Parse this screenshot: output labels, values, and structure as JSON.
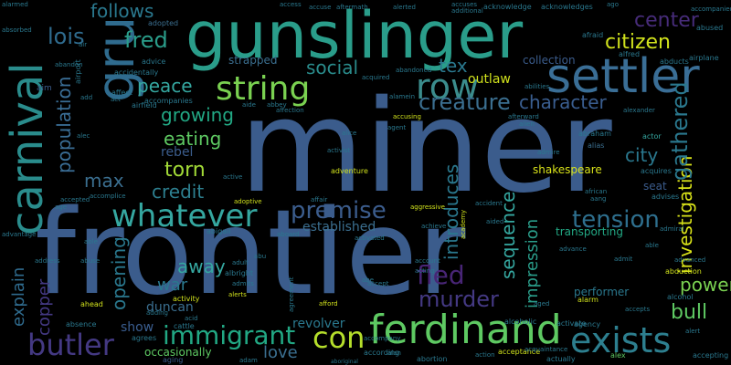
{
  "words": [
    {
      "text": "frontier",
      "color": "#3b5c8c"
    },
    {
      "text": "miner",
      "color": "#3b5c8c"
    },
    {
      "text": "gunslinger",
      "color": "#2a9d8a"
    },
    {
      "text": "settler",
      "color": "#3a6e96"
    },
    {
      "text": "gru",
      "color": "#2f6b8e"
    },
    {
      "text": "carnival",
      "color": "#2a8c8c"
    },
    {
      "text": "ferdinand",
      "color": "#5ec962"
    },
    {
      "text": "exists",
      "color": "#2d7f8f"
    },
    {
      "text": "string",
      "color": "#7ad151"
    },
    {
      "text": "whatever",
      "color": "#35a7a0"
    },
    {
      "text": "row",
      "color": "#3b8c8c"
    },
    {
      "text": "butler",
      "color": "#443983"
    },
    {
      "text": "immigrant",
      "color": "#22a884"
    },
    {
      "text": "con",
      "color": "#b5de2b"
    },
    {
      "text": "creature",
      "color": "#3b6f90"
    },
    {
      "text": "character",
      "color": "#3a5e90"
    },
    {
      "text": "premise",
      "color": "#3b5c8c"
    },
    {
      "text": "tension",
      "color": "#2e6f8e"
    },
    {
      "text": "murder",
      "color": "#443983"
    },
    {
      "text": "fled",
      "color": "#482576"
    },
    {
      "text": "investigation",
      "color": "#d8e219"
    },
    {
      "text": "gathered",
      "color": "#2a788e"
    },
    {
      "text": "citizen",
      "color": "#d0e11c"
    },
    {
      "text": "center",
      "color": "#472c7a"
    },
    {
      "text": "fred",
      "color": "#2a9d8a"
    },
    {
      "text": "lois",
      "color": "#2f6b8e"
    },
    {
      "text": "follows",
      "color": "#2a788e"
    },
    {
      "text": "social",
      "color": "#2a8c8c"
    },
    {
      "text": "tex",
      "color": "#2a788e"
    },
    {
      "text": "peace",
      "color": "#35a7a0"
    },
    {
      "text": "growing",
      "color": "#22a884"
    },
    {
      "text": "eating",
      "color": "#5ec962"
    },
    {
      "text": "population",
      "color": "#3a6e96"
    },
    {
      "text": "torn",
      "color": "#a2da37"
    },
    {
      "text": "max",
      "color": "#3b6f90"
    },
    {
      "text": "credit",
      "color": "#2d7f8f"
    },
    {
      "text": "rebel",
      "color": "#3b5c8c"
    },
    {
      "text": "city",
      "color": "#2a788e"
    },
    {
      "text": "power",
      "color": "#7ad151"
    },
    {
      "text": "bull",
      "color": "#5ec962"
    },
    {
      "text": "sequence",
      "color": "#35a7a0"
    },
    {
      "text": "introduces",
      "color": "#2a788e"
    },
    {
      "text": "impression",
      "color": "#2a9d8a"
    },
    {
      "text": "established",
      "color": "#3b6f90"
    },
    {
      "text": "opening",
      "color": "#2a788e"
    },
    {
      "text": "explain",
      "color": "#2f6b8e"
    },
    {
      "text": "copper",
      "color": "#443983"
    },
    {
      "text": "away",
      "color": "#35a7a0"
    },
    {
      "text": "war",
      "color": "#2a788e"
    },
    {
      "text": "duncan",
      "color": "#3b6f90"
    },
    {
      "text": "show",
      "color": "#3a5e90"
    },
    {
      "text": "love",
      "color": "#3b6f90"
    },
    {
      "text": "revolver",
      "color": "#2a788e"
    },
    {
      "text": "occasionally",
      "color": "#5ec962"
    },
    {
      "text": "outlaw",
      "color": "#d0e11c"
    },
    {
      "text": "strapped",
      "color": "#3b6f90"
    },
    {
      "text": "shakespeare",
      "color": "#d8e219"
    },
    {
      "text": "transporting",
      "color": "#22a884"
    },
    {
      "text": "seat",
      "color": "#3b5c8c"
    },
    {
      "text": "performer",
      "color": "#2a788e"
    },
    {
      "text": "collection",
      "color": "#3b5c8c"
    },
    {
      "text": "aim",
      "color": "#3b5c8c"
    },
    {
      "text": "abandoned",
      "color": "#2a788e"
    },
    {
      "text": "abraham",
      "color": "#2a788e"
    },
    {
      "text": "actor",
      "color": "#35a7a0"
    },
    {
      "text": "alias",
      "color": "#3b6f90"
    },
    {
      "text": "acquires",
      "color": "#2a788e"
    },
    {
      "text": "advises",
      "color": "#2a788e"
    },
    {
      "text": "abduction",
      "color": "#d0e11c"
    },
    {
      "text": "alcohol",
      "color": "#2a788e"
    },
    {
      "text": "alarm",
      "color": "#d0e11c"
    },
    {
      "text": "abigail",
      "color": "#2a788e"
    },
    {
      "text": "albright",
      "color": "#2a788e"
    },
    {
      "text": "activity",
      "color": "#d0e11c"
    },
    {
      "text": "adventure",
      "color": "#d0e11c"
    },
    {
      "text": "alcoholic",
      "color": "#2a788e"
    },
    {
      "text": "activate",
      "color": "#2a788e"
    },
    {
      "text": "acceptance",
      "color": "#d0e11c"
    },
    {
      "text": "actually",
      "color": "#2a788e"
    },
    {
      "text": "alex",
      "color": "#5ec962"
    },
    {
      "text": "aging",
      "color": "#3b5c8c"
    },
    {
      "text": "cattle",
      "color": "#2a788e"
    },
    {
      "text": "ahead",
      "color": "#d0e11c"
    },
    {
      "text": "absence",
      "color": "#2a788e"
    },
    {
      "text": "agrees",
      "color": "#2a788e"
    },
    {
      "text": "abortion",
      "color": "#2a788e"
    },
    {
      "text": "according",
      "color": "#2a788e"
    },
    {
      "text": "accepting",
      "color": "#2a788e"
    },
    {
      "text": "agency",
      "color": "#2a788e"
    },
    {
      "text": "accidentally",
      "color": "#2a788e"
    },
    {
      "text": "advice",
      "color": "#2a788e"
    },
    {
      "text": "airfield",
      "color": "#2a788e"
    },
    {
      "text": "airport",
      "color": "#2a788e"
    },
    {
      "text": "affect",
      "color": "#2a788e"
    },
    {
      "text": "accompanies",
      "color": "#2a788e"
    },
    {
      "text": "adopted",
      "color": "#3b6f90"
    },
    {
      "text": "accompanied",
      "color": "#2a788e"
    },
    {
      "text": "abused",
      "color": "#2a788e"
    },
    {
      "text": "airplane",
      "color": "#2a788e"
    },
    {
      "text": "alfred",
      "color": "#2a788e"
    },
    {
      "text": "abducts",
      "color": "#2a788e"
    },
    {
      "text": "afraid",
      "color": "#2a788e"
    },
    {
      "text": "acknowledge",
      "color": "#2a788e"
    },
    {
      "text": "acknowledges",
      "color": "#2a788e"
    },
    {
      "text": "accuses",
      "color": "#2a788e"
    },
    {
      "text": "additional",
      "color": "#2a788e"
    },
    {
      "text": "aftermath",
      "color": "#2a788e"
    },
    {
      "text": "alerted",
      "color": "#2a788e"
    },
    {
      "text": "accuse",
      "color": "#2a788e"
    },
    {
      "text": "aboard",
      "color": "#2a788e"
    },
    {
      "text": "african",
      "color": "#2a788e"
    },
    {
      "text": "aang",
      "color": "#2a788e"
    },
    {
      "text": "admiral",
      "color": "#2a788e"
    },
    {
      "text": "advanced",
      "color": "#2a788e"
    },
    {
      "text": "admit",
      "color": "#2a788e"
    },
    {
      "text": "aged",
      "color": "#2a788e"
    },
    {
      "text": "agent",
      "color": "#2a788e"
    },
    {
      "text": "alien",
      "color": "#2a788e"
    },
    {
      "text": "abbey",
      "color": "#2a788e"
    },
    {
      "text": "affection",
      "color": "#2a788e"
    },
    {
      "text": "aide",
      "color": "#2a788e"
    },
    {
      "text": "alamein",
      "color": "#2a788e"
    },
    {
      "text": "accusing",
      "color": "#d0e11c"
    },
    {
      "text": "afterward",
      "color": "#2a788e"
    },
    {
      "text": "alexander",
      "color": "#2a788e"
    },
    {
      "text": "abilities",
      "color": "#2a788e"
    },
    {
      "text": "acquired",
      "color": "#2a788e"
    },
    {
      "text": "activist",
      "color": "#2a788e"
    },
    {
      "text": "active",
      "color": "#2a788e"
    },
    {
      "text": "adoptive",
      "color": "#d0e11c"
    },
    {
      "text": "affair",
      "color": "#2a788e"
    },
    {
      "text": "aggressive",
      "color": "#d0e11c"
    },
    {
      "text": "achieve",
      "color": "#2a788e"
    },
    {
      "text": "alan",
      "color": "#2a788e"
    },
    {
      "text": "accompany",
      "color": "#2a788e"
    },
    {
      "text": "afford",
      "color": "#d0e11c"
    },
    {
      "text": "agreement",
      "color": "#2a788e"
    },
    {
      "text": "adult",
      "color": "#2a788e"
    },
    {
      "text": "abu",
      "color": "#2a788e"
    },
    {
      "text": "accomplice",
      "color": "#2a788e"
    },
    {
      "text": "accepted",
      "color": "#2a788e"
    },
    {
      "text": "advantage",
      "color": "#2a788e"
    },
    {
      "text": "address",
      "color": "#2a788e"
    },
    {
      "text": "abuse",
      "color": "#2a788e"
    },
    {
      "text": "acid",
      "color": "#2a788e"
    },
    {
      "text": "able",
      "color": "#2a788e"
    },
    {
      "text": "accident",
      "color": "#2a788e"
    },
    {
      "text": "accept",
      "color": "#2a788e"
    },
    {
      "text": "account",
      "color": "#2a788e"
    },
    {
      "text": "action",
      "color": "#2a788e"
    },
    {
      "text": "ago",
      "color": "#2a788e"
    },
    {
      "text": "acquaintance",
      "color": "#2a788e"
    },
    {
      "text": "air",
      "color": "#2a788e"
    },
    {
      "text": "add",
      "color": "#2a788e"
    },
    {
      "text": "act",
      "color": "#2a788e"
    },
    {
      "text": "age",
      "color": "#2a788e"
    },
    {
      "text": "alec",
      "color": "#2a788e"
    },
    {
      "text": "alice",
      "color": "#2a788e"
    },
    {
      "text": "academy",
      "color": "#d0e11c"
    },
    {
      "text": "activated",
      "color": "#2a788e"
    },
    {
      "text": "abe",
      "color": "#2a788e"
    },
    {
      "text": "access",
      "color": "#2a788e"
    },
    {
      "text": "alarmed",
      "color": "#2a788e"
    },
    {
      "text": "alerts",
      "color": "#d0e11c"
    },
    {
      "text": "admits",
      "color": "#2a788e"
    },
    {
      "text": "adam",
      "color": "#2a788e"
    },
    {
      "text": "adding",
      "color": "#2a788e"
    },
    {
      "text": "able",
      "color": "#2a788e"
    },
    {
      "text": "accepts",
      "color": "#2a788e"
    },
    {
      "text": "absorbed",
      "color": "#2a788e"
    },
    {
      "text": "alert",
      "color": "#2a788e"
    },
    {
      "text": "acting",
      "color": "#2a788e"
    },
    {
      "text": "aided",
      "color": "#2a788e"
    },
    {
      "text": "abandon",
      "color": "#2a788e"
    },
    {
      "text": "admire",
      "color": "#2a788e"
    },
    {
      "text": "aboriginal",
      "color": "#2a788e"
    },
    {
      "text": "advance",
      "color": "#2a788e"
    }
  ]
}
